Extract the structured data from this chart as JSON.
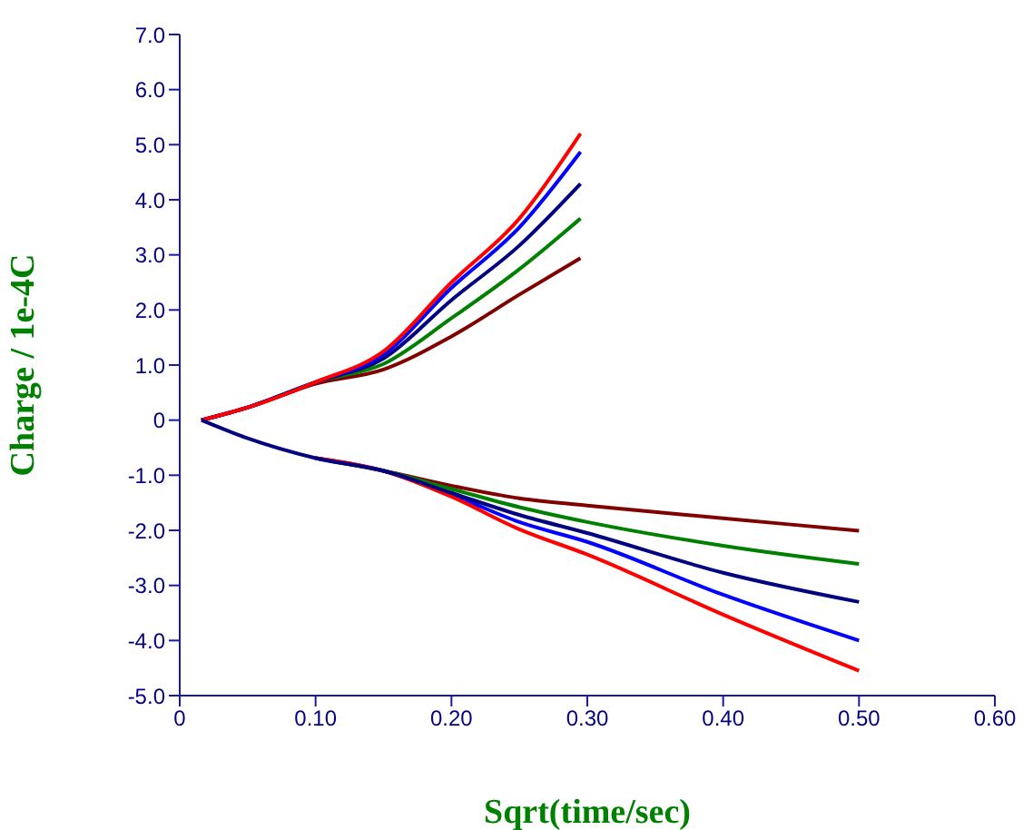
{
  "chart_data": {
    "type": "line",
    "xlabel": "Sqrt(time/sec)",
    "ylabel": "Charge / 1e-4C",
    "xlim": [
      0,
      0.6
    ],
    "xticks": [
      0,
      {
        "value": 0.1,
        "label": "0.10"
      },
      {
        "value": 0.2,
        "label": "0.20"
      },
      {
        "value": 0.3,
        "label": "0.30"
      },
      {
        "value": 0.4,
        "label": "0.40"
      },
      {
        "value": 0.5,
        "label": "0.50"
      },
      {
        "value": 0.6,
        "label": "0.60"
      }
    ],
    "ylim": [
      -5,
      7
    ],
    "yticks": [
      {
        "value": -5,
        "label": "-5.0"
      },
      {
        "value": -4,
        "label": "-4.0"
      },
      {
        "value": -3,
        "label": "-3.0"
      },
      {
        "value": -2,
        "label": "-2.0"
      },
      {
        "value": -1,
        "label": "-1.0"
      },
      0,
      {
        "value": 1,
        "label": "1.0"
      },
      {
        "value": 2,
        "label": "2.0"
      },
      {
        "value": 3,
        "label": "3.0"
      },
      {
        "value": 4,
        "label": "4.0"
      },
      {
        "value": 5,
        "label": "5.0"
      },
      {
        "value": 6,
        "label": "6.0"
      },
      {
        "value": 7,
        "label": "7.0"
      }
    ],
    "series": [
      {
        "color": "#800000",
        "x": [
          0.016,
          0.05,
          0.1,
          0.15,
          0.2,
          0.25,
          0.295
        ],
        "values": [
          0,
          0.23,
          0.66,
          0.92,
          1.52,
          2.28,
          2.94
        ]
      },
      {
        "color": "#008000",
        "x": [
          0.016,
          0.05,
          0.1,
          0.15,
          0.2,
          0.25,
          0.295
        ],
        "values": [
          0,
          0.23,
          0.69,
          1.02,
          1.85,
          2.74,
          3.66
        ]
      },
      {
        "color": "#000080",
        "x": [
          0.016,
          0.05,
          0.1,
          0.15,
          0.2,
          0.25,
          0.295
        ],
        "values": [
          0,
          0.23,
          0.69,
          1.12,
          2.18,
          3.17,
          4.29
        ]
      },
      {
        "color": "#0000ff",
        "x": [
          0.016,
          0.05,
          0.1,
          0.15,
          0.2,
          0.25,
          0.295
        ],
        "values": [
          0,
          0.23,
          0.69,
          1.19,
          2.4,
          3.5,
          4.87
        ]
      },
      {
        "color": "#ff0000",
        "x": [
          0.016,
          0.05,
          0.1,
          0.15,
          0.2,
          0.25,
          0.295
        ],
        "values": [
          0,
          0.23,
          0.69,
          1.25,
          2.5,
          3.66,
          5.2
        ]
      },
      {
        "color": "#800000",
        "x": [
          0.1,
          0.15,
          0.2,
          0.25,
          0.3,
          0.4,
          0.5
        ],
        "values": [
          -0.69,
          -0.92,
          -1.19,
          -1.42,
          -1.55,
          -1.78,
          -2.01
        ]
      },
      {
        "color": "#008000",
        "x": [
          0.1,
          0.15,
          0.2,
          0.25,
          0.3,
          0.4,
          0.5
        ],
        "values": [
          -0.69,
          -0.92,
          -1.25,
          -1.58,
          -1.85,
          -2.28,
          -2.61
        ]
      },
      {
        "color": "#0000ff",
        "x": [
          0.1,
          0.15,
          0.2,
          0.25,
          0.3,
          0.4,
          0.5
        ],
        "values": [
          -0.69,
          -0.92,
          -1.35,
          -1.85,
          -2.21,
          -3.17,
          -4.0
        ]
      },
      {
        "color": "#ff0000",
        "x": [
          0.1,
          0.15,
          0.2,
          0.25,
          0.3,
          0.4,
          0.5
        ],
        "values": [
          -0.69,
          -0.92,
          -1.39,
          -1.98,
          -2.44,
          -3.53,
          -4.55
        ]
      },
      {
        "color": "#000080",
        "x": [
          0.016,
          0.05,
          0.1,
          0.15,
          0.2,
          0.25,
          0.3,
          0.4,
          0.5
        ],
        "values": [
          0,
          -0.33,
          -0.69,
          -0.92,
          -1.32,
          -1.72,
          -2.05,
          -2.77,
          -3.3
        ]
      }
    ]
  }
}
